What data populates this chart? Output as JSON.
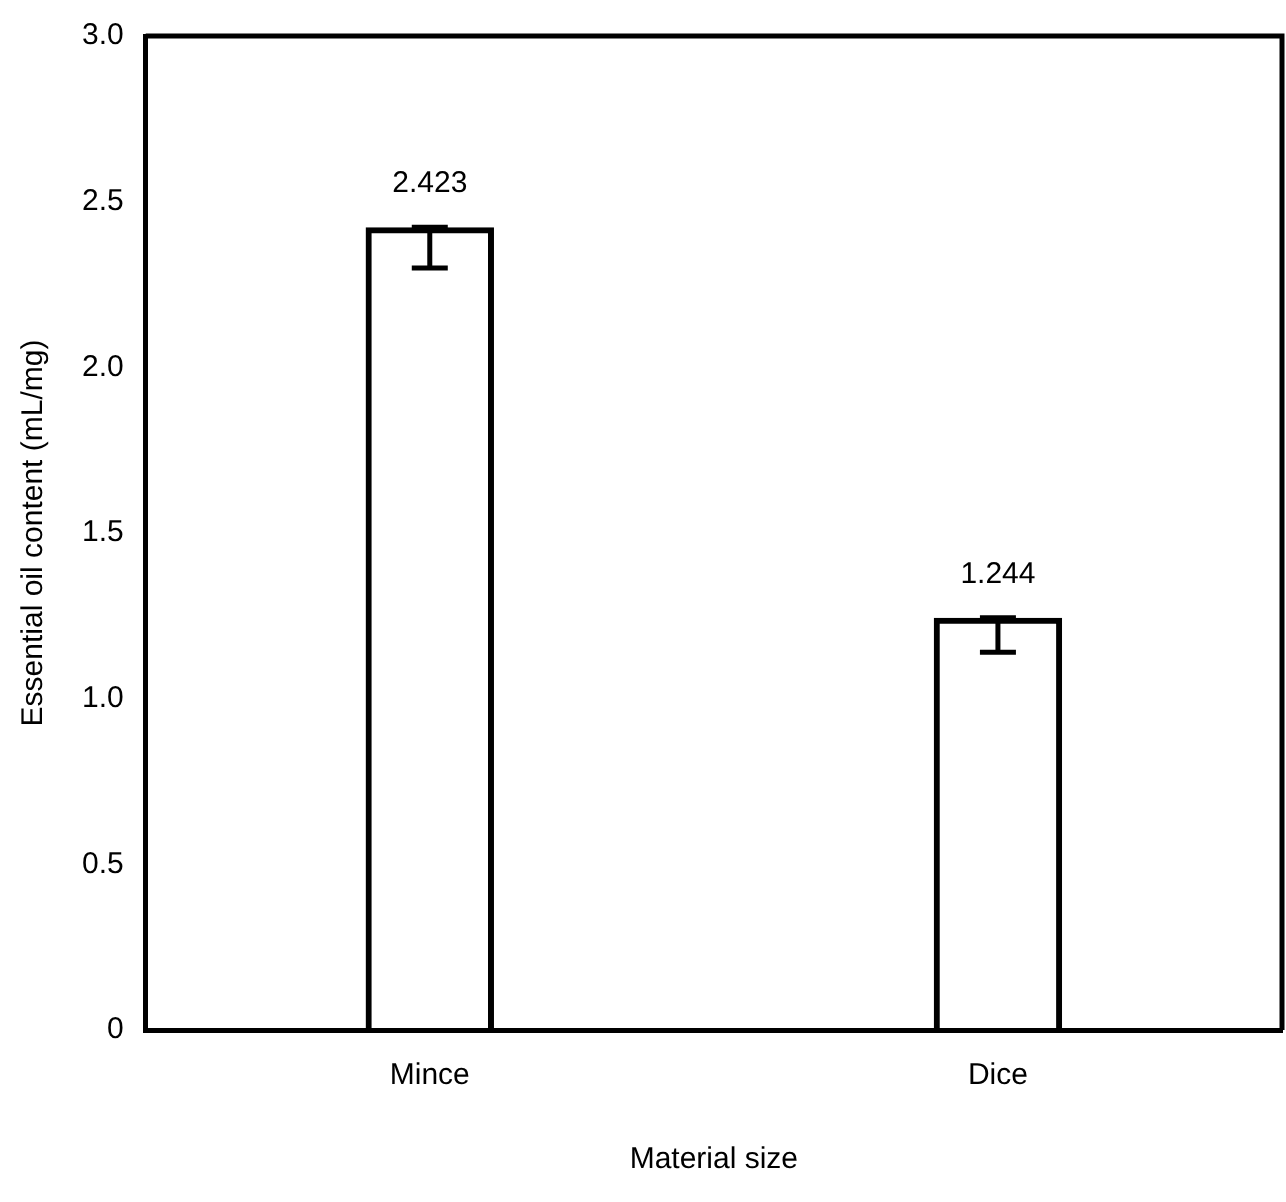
{
  "chart_data": {
    "type": "bar",
    "xlabel": "Material size",
    "ylabel": "Essential oil content (mL/mg)",
    "categories": [
      "Mince",
      "Dice"
    ],
    "series": [
      {
        "color": "#000000",
        "values": [
          2.423,
          1.244
        ],
        "errors": [
          [
            2.3,
            2.423
          ],
          [
            1.14,
            1.244
          ]
        ]
      }
    ],
    "data_labels": true,
    "grid": false,
    "legend": false,
    "ylim": [
      0,
      3
    ],
    "yticks": [
      0,
      0.5,
      {
        "value": 1,
        "label": "1.0"
      },
      1.5,
      {
        "value": 2,
        "label": "2.0"
      },
      2.5,
      {
        "value": 3,
        "label": "3.0"
      }
    ]
  }
}
